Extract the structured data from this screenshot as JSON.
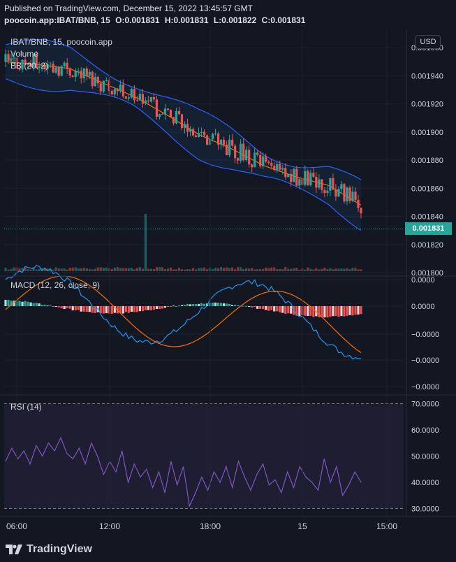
{
  "header": {
    "published": "Published on TradingView.com, December 15, 2022 13:45:57 GMT",
    "symbol_line": "poocoin.app:IBAT/BNB, 15",
    "o": "O:0.001831",
    "h": "H:0.001831",
    "l": "L:0.001822",
    "c": "C:0.001831"
  },
  "main_pane": {
    "symbol": "IBAT/BNB, 15, poocoin.app",
    "volume_label": "Volume",
    "bb_label": "BB (20, 2)",
    "currency_button": "USD",
    "last_price": "0.001831",
    "price_ticks": [
      "0.001960",
      "0.001940",
      "0.001920",
      "0.001900",
      "0.001880",
      "0.001860",
      "0.001840",
      "0.001820",
      "0.001800"
    ]
  },
  "macd_pane": {
    "label": "MACD (12, 26, close, 9)",
    "ticks": [
      "0.0000",
      "0.0000",
      "−0.0000",
      "−0.0000",
      "−0.0000"
    ]
  },
  "rsi_pane": {
    "label": "RSI (14)",
    "ticks": [
      "70.0000",
      "60.0000",
      "50.0000",
      "40.0000",
      "30.0000"
    ]
  },
  "time_axis": [
    "06:00",
    "12:00",
    "18:00",
    "15",
    "15:00"
  ],
  "footer": {
    "brand": "TradingView"
  },
  "colors": {
    "up": "#26a69a",
    "down": "#ef5350",
    "bb": "#2962ff",
    "basis": "#ff6d00",
    "macd": "#2196f3",
    "signal": "#ff6d00",
    "rsi": "#7e57c2",
    "background": "#131722"
  },
  "chart_data": [
    {
      "type": "candlestick",
      "title": "IBAT/BNB, 15, poocoin.app",
      "ylim": [
        0.0018,
        0.00197
      ],
      "x_ticks": [
        "06:00",
        "12:00",
        "18:00",
        "15",
        "15:00"
      ],
      "bb_basis_approx": [
        0.00195,
        0.001948,
        0.001945,
        0.001935,
        0.001925,
        0.001912,
        0.001898,
        0.001888,
        0.001876,
        0.001868,
        0.001862,
        0.001848
      ],
      "last": {
        "open": 0.001831,
        "high": 0.001831,
        "low": 0.001822,
        "close": 0.001831
      }
    },
    {
      "type": "line",
      "title": "MACD (12, 26, close, 9)",
      "series": [
        {
          "name": "MACD"
        },
        {
          "name": "Signal"
        }
      ]
    },
    {
      "type": "line",
      "title": "RSI (14)",
      "ylim": [
        28,
        72
      ],
      "bands": [
        30,
        70
      ],
      "values": [
        48,
        53,
        49,
        52,
        47,
        54,
        50,
        55,
        52,
        57,
        51,
        49,
        53,
        47,
        55,
        50,
        43,
        48,
        44,
        52,
        40,
        47,
        42,
        45,
        38,
        44,
        36,
        48,
        39,
        46,
        31,
        36,
        42,
        37,
        44,
        40,
        46,
        38,
        48,
        42,
        37,
        43,
        47,
        39,
        41,
        36,
        44,
        38,
        46,
        42,
        40,
        37,
        49,
        40,
        46,
        35,
        39,
        44,
        40
      ]
    }
  ]
}
